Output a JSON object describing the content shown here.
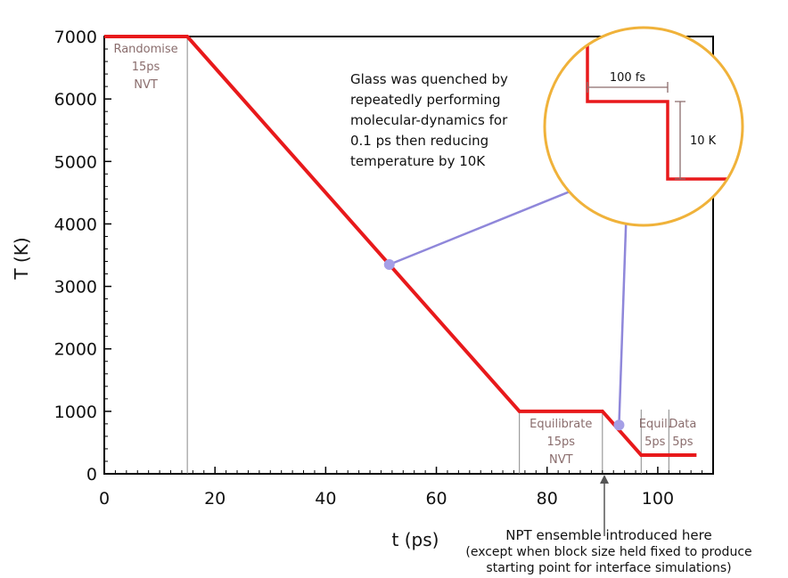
{
  "chart_data": {
    "type": "line",
    "xlabel": "t (ps)",
    "ylabel": "T (K)",
    "xlim": [
      0,
      110
    ],
    "ylim": [
      0,
      7000
    ],
    "x_ticks": [
      0,
      20,
      40,
      60,
      80,
      100
    ],
    "y_ticks": [
      0,
      1000,
      2000,
      3000,
      4000,
      5000,
      6000,
      7000
    ],
    "grid": false,
    "series": [
      {
        "color": "#e8191b",
        "points": [
          {
            "x": 0,
            "y": 7000
          },
          {
            "x": 15,
            "y": 7000
          },
          {
            "x": 75,
            "y": 1000
          },
          {
            "x": 90,
            "y": 1000
          },
          {
            "x": 97,
            "y": 300
          },
          {
            "x": 107,
            "y": 300
          }
        ]
      }
    ],
    "phase_dividers": [
      15,
      75,
      90,
      97,
      102
    ],
    "phases": [
      {
        "lines": [
          "Randomise",
          "15ps",
          "NVT"
        ],
        "x_center": 7.5
      },
      {
        "lines": [
          "Equilibrate",
          "15ps",
          "NVT"
        ],
        "x_center": 82.5
      },
      {
        "lines": [
          "Equil.",
          "5ps"
        ],
        "x_center": 99.5
      },
      {
        "lines": [
          "Data",
          "5ps"
        ],
        "x_center": 104.5
      }
    ],
    "annotations": {
      "quench_note": [
        "Glass was quenched by",
        "repeatedly performing",
        "molecular-dynamics for",
        "0.1 ps then reducing",
        "temperature by 10K"
      ],
      "npt_note": [
        "NPT ensemble introduced here",
        "(except when block size held fixed to produce",
        "starting point for interface simulations)"
      ],
      "npt_at_x": 90,
      "zoom_step_x_label": "100 fs",
      "zoom_step_y_label": "10 K",
      "marker_points": [
        {
          "x": 51.5,
          "y": 3350
        },
        {
          "x": 93,
          "y": 780
        }
      ]
    },
    "colors": {
      "line": "#e8191b",
      "marker": "#a59fe6",
      "connector": "#8f87da",
      "zoom_border": "#f0b23a",
      "divider": "#888888"
    }
  }
}
